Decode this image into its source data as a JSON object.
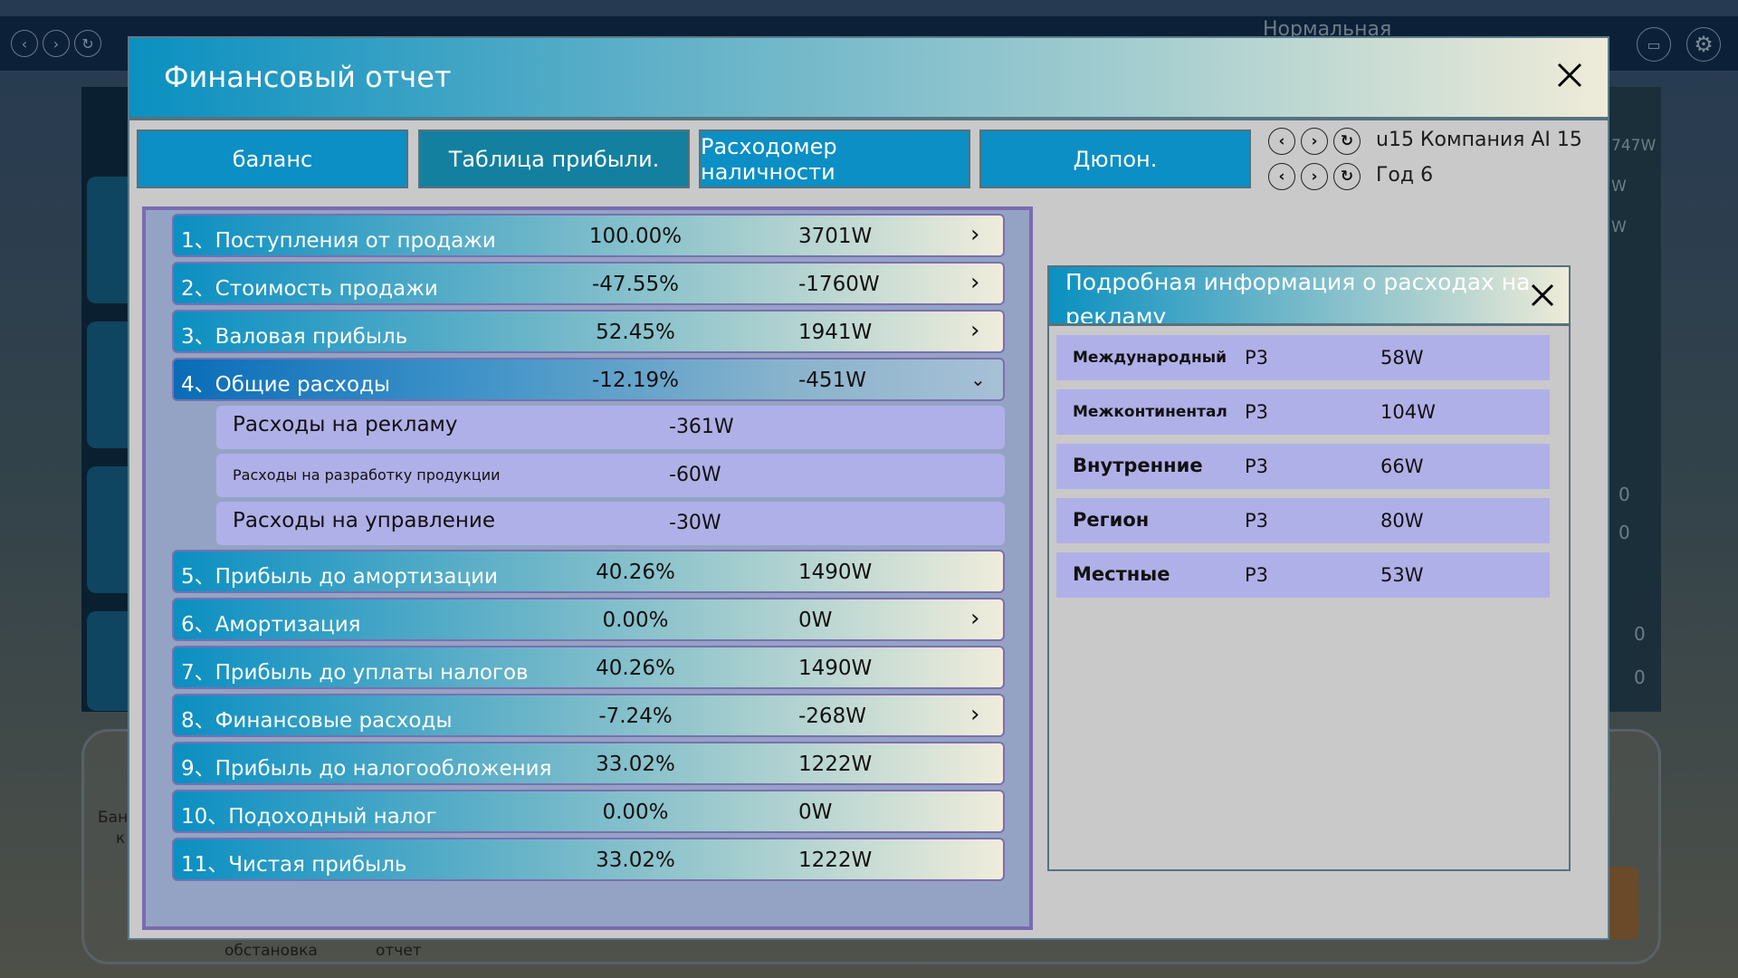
{
  "background": {
    "mode_label": "Нормальная",
    "right_value": "747W",
    "right_values_short": [
      "W",
      "W",
      "0",
      "0",
      "0",
      "0"
    ],
    "bottom_labels": [
      "Бан",
      "к",
      "обстановка",
      "отчет"
    ]
  },
  "modal": {
    "title": "Финансовый отчет",
    "close_icon": "close-icon",
    "tabs": [
      {
        "label": "баланс"
      },
      {
        "label": "Таблица прибыли."
      },
      {
        "label": "Расходомер наличности"
      },
      {
        "label": "Дюпон."
      }
    ],
    "active_tab": "Таблица прибыли.",
    "company_selector": {
      "label": "u15  Компания AI 15"
    },
    "year_selector": {
      "label": "Год 6"
    }
  },
  "profit_table": {
    "rows": [
      {
        "label": "1、Поступления от продажи",
        "percent": "100.00%",
        "value": "3701W",
        "expandable": true
      },
      {
        "label": "2、Стоимость продажи",
        "percent": "-47.55%",
        "value": "-1760W",
        "expandable": true
      },
      {
        "label": "3、Валовая прибыль",
        "percent": "52.45%",
        "value": "1941W",
        "expandable": true
      },
      {
        "label": "4、Общие расходы",
        "percent": "-12.19%",
        "value": "-451W",
        "expandable": true,
        "expanded": true,
        "children": [
          {
            "label": "Расходы на рекламу",
            "value": "-361W"
          },
          {
            "label": "Расходы на разработку продукции",
            "value": "-60W"
          },
          {
            "label": "Расходы на управление",
            "value": "-30W"
          }
        ]
      },
      {
        "label": "5、Прибыль до амортизации",
        "percent": "40.26%",
        "value": "1490W",
        "expandable": false
      },
      {
        "label": "6、Амортизация",
        "percent": "0.00%",
        "value": "0W",
        "expandable": true
      },
      {
        "label": "7、Прибыль до уплаты налогов",
        "percent": "40.26%",
        "value": "1490W",
        "expandable": false
      },
      {
        "label": "8、Финансовые расходы",
        "percent": "-7.24%",
        "value": "-268W",
        "expandable": true
      },
      {
        "label": "9、Прибыль до налогообложения",
        "percent": "33.02%",
        "value": "1222W",
        "expandable": false
      },
      {
        "label": "10、Подоходный налог",
        "percent": "0.00%",
        "value": "0W",
        "expandable": false
      },
      {
        "label": "11、Чистая прибыль",
        "percent": "33.02%",
        "value": "1222W",
        "expandable": false
      }
    ]
  },
  "ad_details": {
    "title": "Подробная информация о расходах на рекламу",
    "rows": [
      {
        "market": "Международный",
        "product": "P3",
        "value": "58W"
      },
      {
        "market": "Межконтинентал",
        "product": "P3",
        "value": "104W"
      },
      {
        "market": "Внутренние",
        "product": "P3",
        "value": "66W"
      },
      {
        "market": "Регион",
        "product": "P3",
        "value": "80W"
      },
      {
        "market": "Местные",
        "product": "P3",
        "value": "53W"
      }
    ]
  },
  "colors": {
    "header_gradient_start": "#0a90c0",
    "header_gradient_end": "#efebd8",
    "tab_bg": "#0b8fc4",
    "panel_bg": "#94a3c4",
    "panel_border": "#7a6ab0",
    "subrow_bg": "#b0b0e8",
    "modal_bg": "#c9c9c9"
  }
}
